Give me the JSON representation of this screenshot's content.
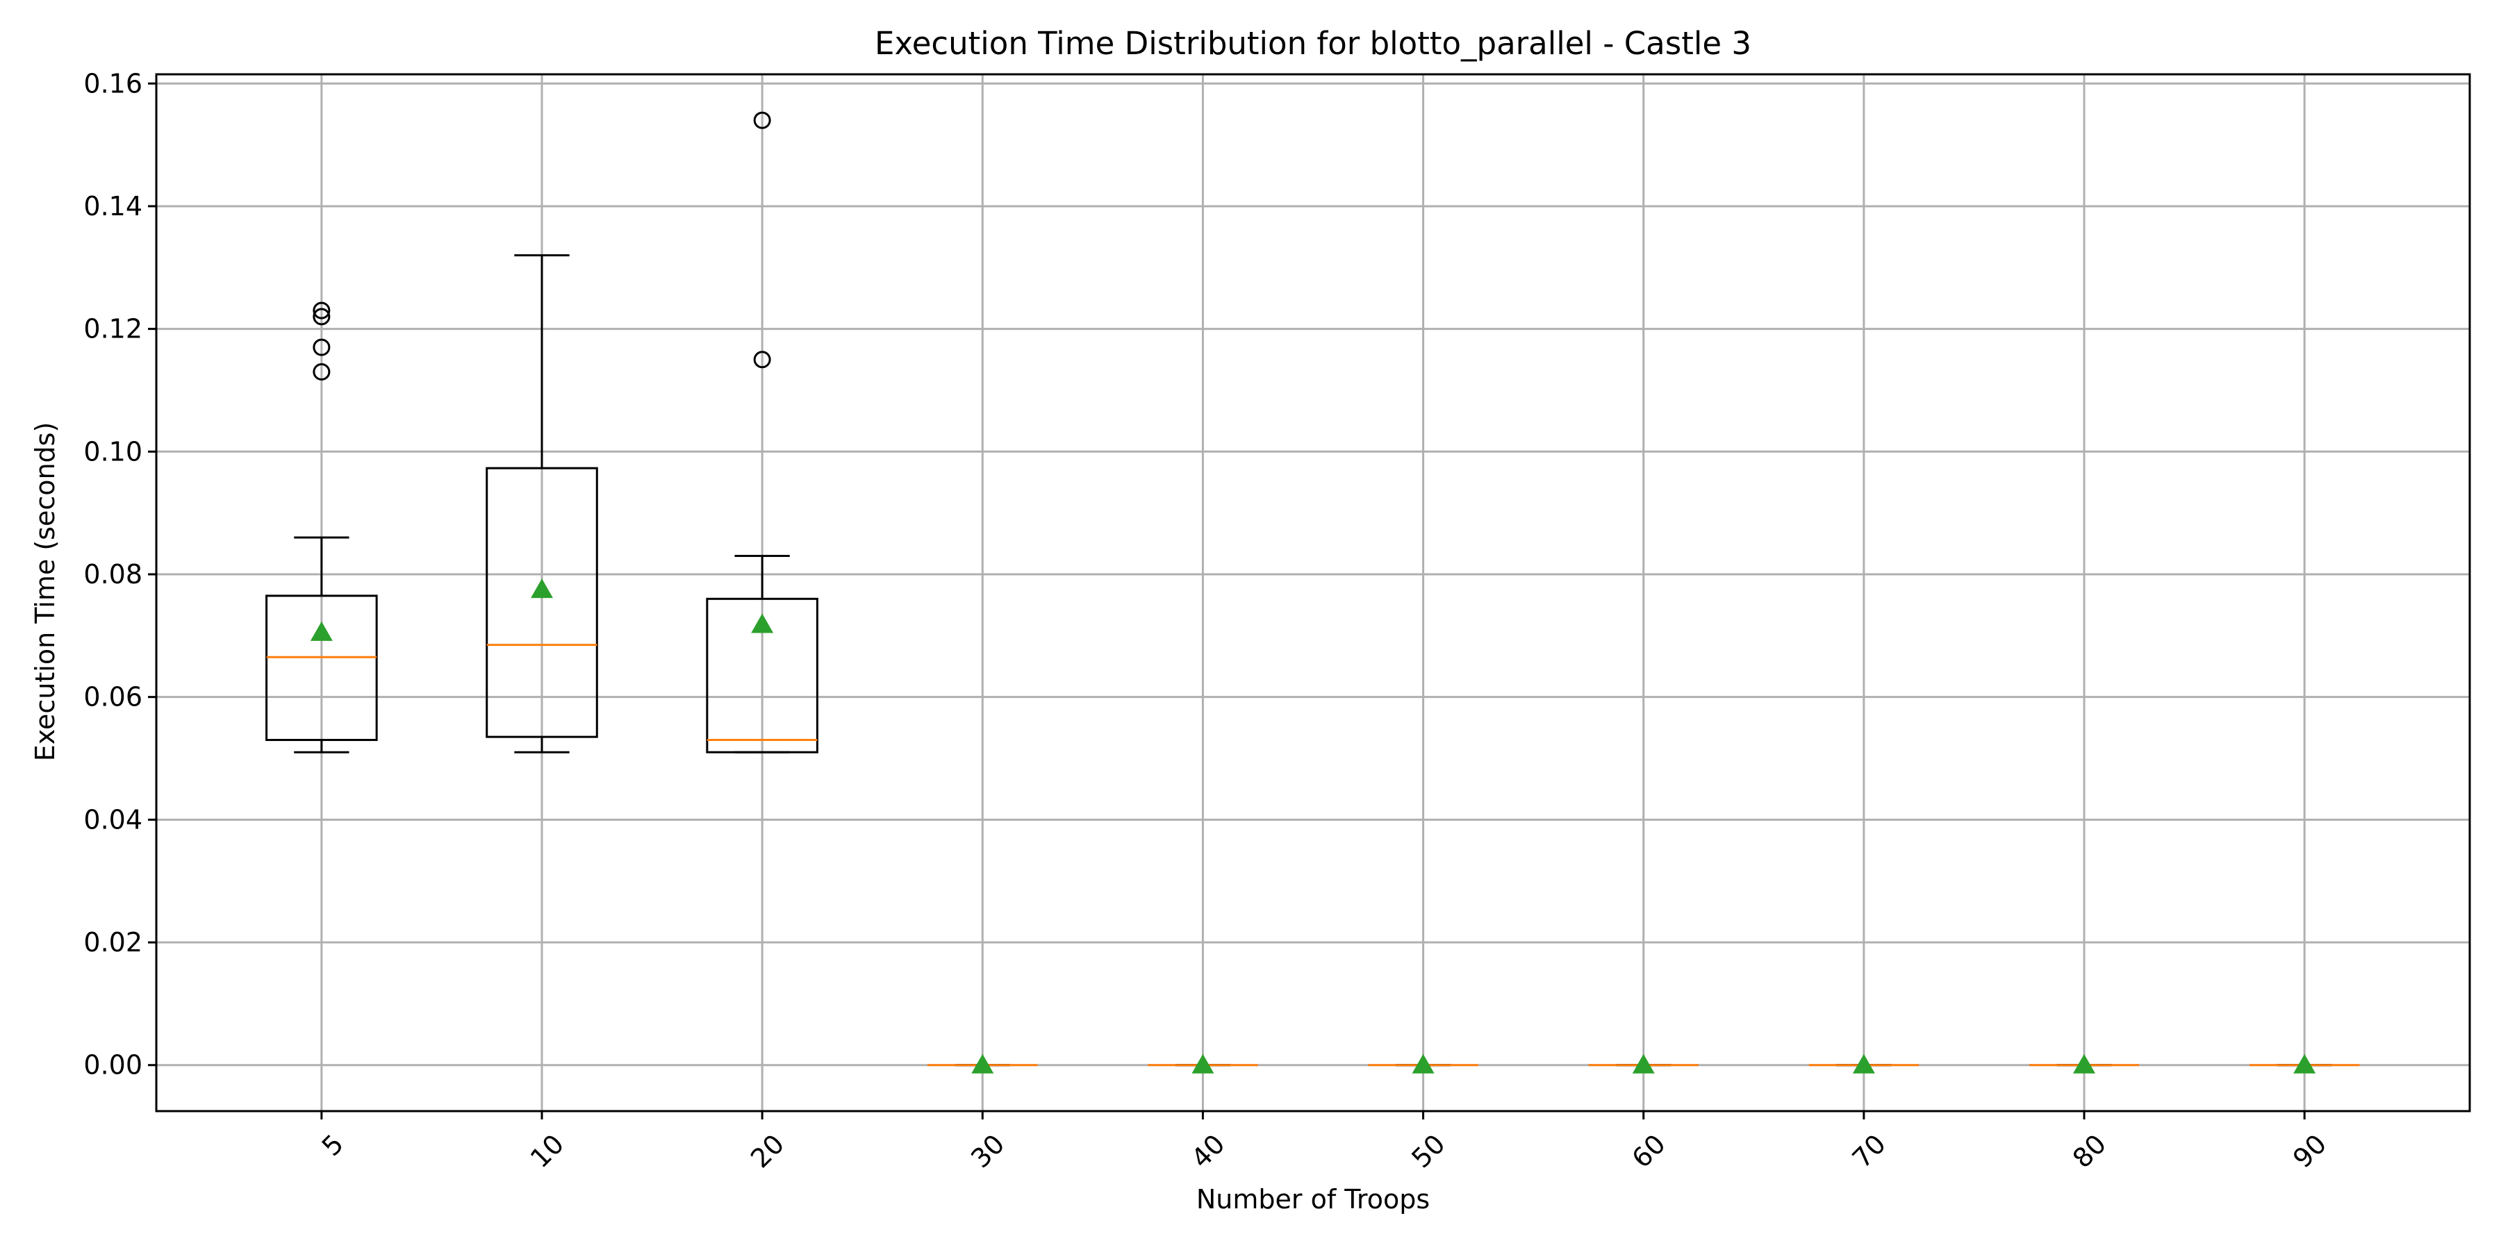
{
  "chart_data": {
    "type": "box",
    "title": "Execution Time Distribution for blotto_parallel - Castle 3",
    "xlabel": "Number of Troops",
    "ylabel": "Execution Time (seconds)",
    "categories": [
      "5",
      "10",
      "20",
      "30",
      "40",
      "50",
      "60",
      "70",
      "80",
      "90"
    ],
    "ylim": [
      -0.0075,
      0.1615
    ],
    "yticks": [
      0.0,
      0.02,
      0.04,
      0.06,
      0.08,
      0.1,
      0.12,
      0.14,
      0.16
    ],
    "ytick_labels": [
      "0.00",
      "0.02",
      "0.04",
      "0.06",
      "0.08",
      "0.10",
      "0.12",
      "0.14",
      "0.16"
    ],
    "grid": true,
    "xtick_rotation": 45,
    "boxes": [
      {
        "category": "5",
        "whisker_low": 0.051,
        "q1": 0.053,
        "median": 0.0665,
        "q3": 0.0765,
        "whisker_high": 0.086,
        "mean": 0.0705,
        "outliers": [
          0.113,
          0.117,
          0.122,
          0.123
        ]
      },
      {
        "category": "10",
        "whisker_low": 0.051,
        "q1": 0.0535,
        "median": 0.0685,
        "q3": 0.0973,
        "whisker_high": 0.132,
        "mean": 0.0775,
        "outliers": []
      },
      {
        "category": "20",
        "whisker_low": 0.051,
        "q1": 0.051,
        "median": 0.053,
        "q3": 0.076,
        "whisker_high": 0.083,
        "mean": 0.0718,
        "outliers": [
          0.115,
          0.154
        ]
      },
      {
        "category": "30",
        "whisker_low": 0,
        "q1": 0,
        "median": 0,
        "q3": 0,
        "whisker_high": 0,
        "mean": 0,
        "outliers": []
      },
      {
        "category": "40",
        "whisker_low": 0,
        "q1": 0,
        "median": 0,
        "q3": 0,
        "whisker_high": 0,
        "mean": 0,
        "outliers": []
      },
      {
        "category": "50",
        "whisker_low": 0,
        "q1": 0,
        "median": 0,
        "q3": 0,
        "whisker_high": 0,
        "mean": 0,
        "outliers": []
      },
      {
        "category": "60",
        "whisker_low": 0,
        "q1": 0,
        "median": 0,
        "q3": 0,
        "whisker_high": 0,
        "mean": 0,
        "outliers": []
      },
      {
        "category": "70",
        "whisker_low": 0,
        "q1": 0,
        "median": 0,
        "q3": 0,
        "whisker_high": 0,
        "mean": 0,
        "outliers": []
      },
      {
        "category": "80",
        "whisker_low": 0,
        "q1": 0,
        "median": 0,
        "q3": 0,
        "whisker_high": 0,
        "mean": 0,
        "outliers": []
      },
      {
        "category": "90",
        "whisker_low": 0,
        "q1": 0,
        "median": 0,
        "q3": 0,
        "whisker_high": 0,
        "mean": 0,
        "outliers": []
      }
    ],
    "colors": {
      "box": "#000000",
      "median": "#ff7f0e",
      "mean_marker": "#2ca02c",
      "grid": "#b0b0b0",
      "outlier": "#000000"
    }
  }
}
